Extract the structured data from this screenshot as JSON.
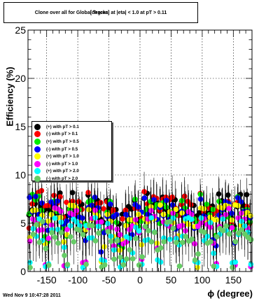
{
  "chart_data": {
    "type": "scatter",
    "title": "Clone  over all for Global Tracks",
    "title_overlay": "|eta| < 1.0 at pT > 0.11",
    "title_overlay_prefix": "[degree] at",
    "xlabel": "ϕ (degree)",
    "ylabel": "Efficiency (%)",
    "xlim": [
      -180,
      180
    ],
    "ylim": [
      0,
      25
    ],
    "x_ticks": [
      -150,
      -100,
      -50,
      0,
      50,
      100,
      150
    ],
    "y_ticks": [
      0,
      5,
      10,
      15,
      20,
      25
    ],
    "grid": true,
    "legend_position": "left-middle",
    "series": [
      {
        "name": "(+) with pT > 0.1",
        "color": "#000000",
        "base": 7.0,
        "low": 5.6
      },
      {
        "name": "(-) with pT > 0.1",
        "color": "#ff0000",
        "base": 7.2,
        "low": 5.8
      },
      {
        "name": "(+) with pT > 0.5",
        "color": "#00ee00",
        "base": 6.8,
        "low": 5.2
      },
      {
        "name": "(-) with pT > 0.5",
        "color": "#0000ff",
        "base": 6.6,
        "low": 5.0
      },
      {
        "name": "(+) with pT > 1.0",
        "color": "#ffff00",
        "base": 5.8,
        "low": 4.2
      },
      {
        "name": "(-) with pT > 1.0",
        "color": "#ff00ff",
        "base": 5.4,
        "low": 3.6
      },
      {
        "name": "(+) with pT > 2.0",
        "color": "#00ffff",
        "base": 4.4,
        "low": 2.8
      },
      {
        "name": "(-) with pT > 2.0",
        "color": "#66cc66",
        "base": 4.0,
        "low": 2.2
      }
    ],
    "colors": {
      "frame": "#000000",
      "grid": "#000000",
      "background": "#ffffff"
    }
  },
  "footer": {
    "datestamp": "Wed Nov  9 10:47:28 2011"
  }
}
